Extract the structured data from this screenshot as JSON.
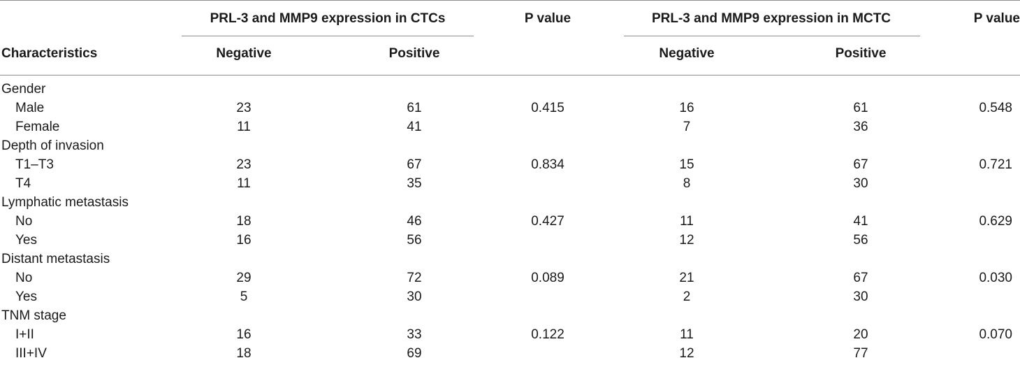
{
  "header": {
    "group_ctcs": "PRL-3 and MMP9 expression in CTCs",
    "pvalue_1": "P value",
    "group_mctc": "PRL-3 and MMP9 expression in MCTC",
    "pvalue_2": "P value",
    "characteristics": "Characteristics",
    "negative_1": "Negative",
    "positive_1": "Positive",
    "negative_2": "Negative",
    "positive_2": "Positive"
  },
  "rows": [
    {
      "label": "Gender",
      "indent": false,
      "neg1": "",
      "pos1": "",
      "p1": "",
      "neg2": "",
      "pos2": "",
      "p2": ""
    },
    {
      "label": "Male",
      "indent": true,
      "neg1": "23",
      "pos1": "61",
      "p1": "0.415",
      "neg2": "16",
      "pos2": "61",
      "p2": "0.548"
    },
    {
      "label": "Female",
      "indent": true,
      "neg1": "11",
      "pos1": "41",
      "p1": "",
      "neg2": "7",
      "pos2": "36",
      "p2": ""
    },
    {
      "label": "Depth of invasion",
      "indent": false,
      "neg1": "",
      "pos1": "",
      "p1": "",
      "neg2": "",
      "pos2": "",
      "p2": ""
    },
    {
      "label": "T1–T3",
      "indent": true,
      "neg1": "23",
      "pos1": "67",
      "p1": "0.834",
      "neg2": "15",
      "pos2": "67",
      "p2": "0.721"
    },
    {
      "label": "T4",
      "indent": true,
      "neg1": "11",
      "pos1": "35",
      "p1": "",
      "neg2": "8",
      "pos2": "30",
      "p2": ""
    },
    {
      "label": "Lymphatic metastasis",
      "indent": false,
      "neg1": "",
      "pos1": "",
      "p1": "",
      "neg2": "",
      "pos2": "",
      "p2": ""
    },
    {
      "label": "No",
      "indent": true,
      "neg1": "18",
      "pos1": "46",
      "p1": "0.427",
      "neg2": "11",
      "pos2": "41",
      "p2": "0.629"
    },
    {
      "label": "Yes",
      "indent": true,
      "neg1": "16",
      "pos1": "56",
      "p1": "",
      "neg2": "12",
      "pos2": "56",
      "p2": ""
    },
    {
      "label": "Distant metastasis",
      "indent": false,
      "neg1": "",
      "pos1": "",
      "p1": "",
      "neg2": "",
      "pos2": "",
      "p2": ""
    },
    {
      "label": "No",
      "indent": true,
      "neg1": "29",
      "pos1": "72",
      "p1": "0.089",
      "neg2": "21",
      "pos2": "67",
      "p2": "0.030"
    },
    {
      "label": "Yes",
      "indent": true,
      "neg1": "5",
      "pos1": "30",
      "p1": "",
      "neg2": "2",
      "pos2": "30",
      "p2": ""
    },
    {
      "label": "TNM stage",
      "indent": false,
      "neg1": "",
      "pos1": "",
      "p1": "",
      "neg2": "",
      "pos2": "",
      "p2": ""
    },
    {
      "label": "I+II",
      "indent": true,
      "neg1": "16",
      "pos1": "33",
      "p1": "0.122",
      "neg2": "11",
      "pos2": "20",
      "p2": "0.070"
    },
    {
      "label": "III+IV",
      "indent": true,
      "neg1": "18",
      "pos1": "69",
      "p1": "",
      "neg2": "12",
      "pos2": "77",
      "p2": ""
    }
  ]
}
